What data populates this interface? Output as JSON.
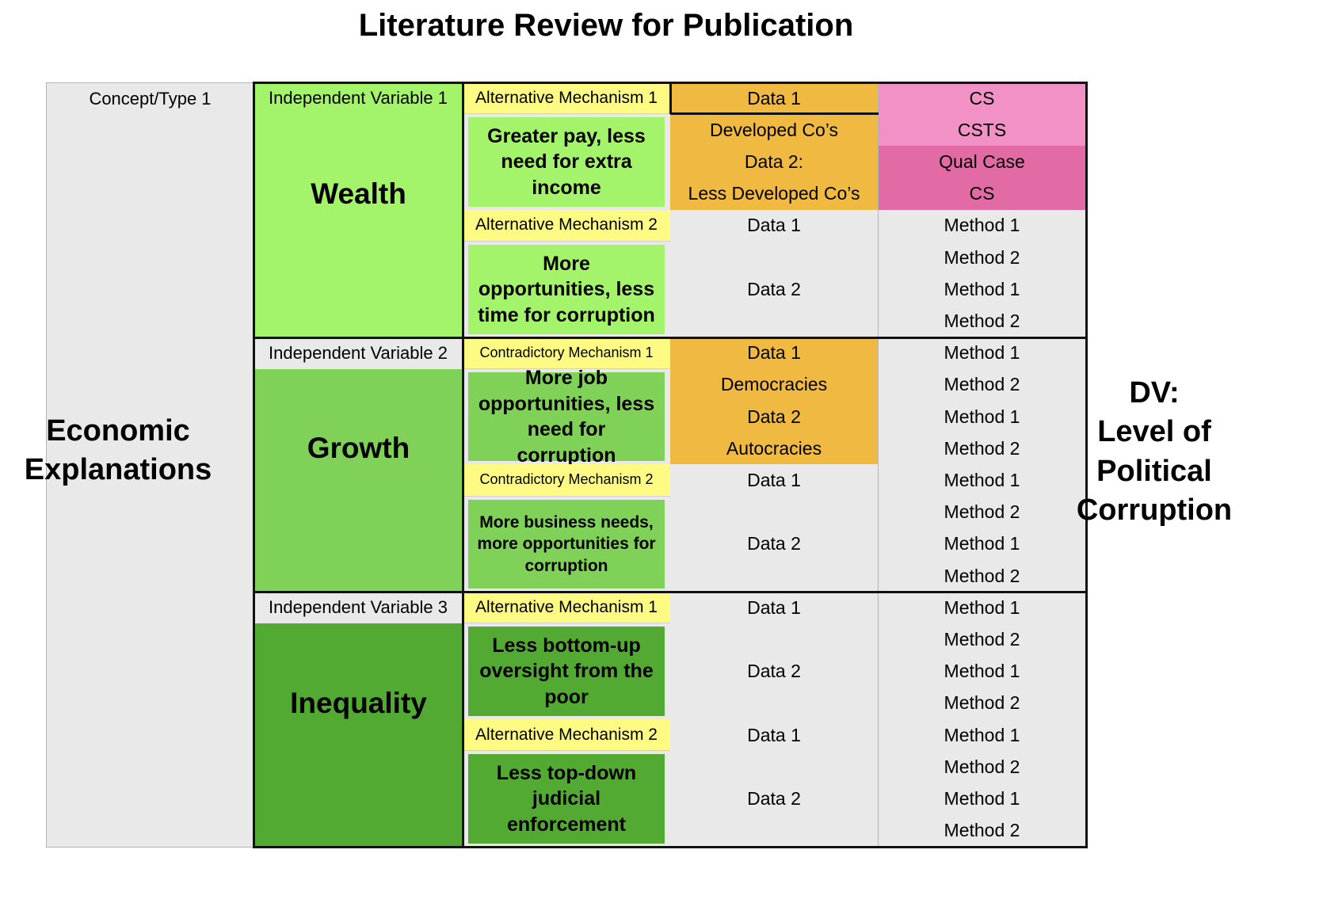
{
  "title": "Literature Review for Publication",
  "concept_label": "Concept/Type 1",
  "left_label": "Economic Explanations",
  "dv_label": [
    "DV:",
    "Level of",
    "Political",
    "Corruption"
  ],
  "colors": {
    "iv1": "#a3f36b",
    "iv2": "#7fd158",
    "iv3": "#52aa33",
    "mechanism_header": "#fdfb84",
    "data_highlight": "#f0b942",
    "cs_pink": "#f191c6",
    "qual_pink": "#e26aa5",
    "grid": "#e9e9e9"
  },
  "groups": [
    {
      "iv_label": "Independent Variable 1",
      "concept": "Wealth",
      "mechanisms": [
        {
          "header": "Alternative Mechanism 1",
          "text": "Greater pay, less need for extra income"
        },
        {
          "header": "Alternative Mechanism 2",
          "text": "More opportunities, less time for corruption"
        }
      ],
      "data": [
        "Data 1",
        "Developed Co’s",
        "Data 2:",
        "Less Developed Co’s",
        "Data 1",
        "",
        "Data 2",
        ""
      ],
      "methods": [
        "CS",
        "CSTS",
        "Qual Case",
        "CS",
        "Method 1",
        "Method 2",
        "Method 1",
        "Method 2"
      ]
    },
    {
      "iv_label": "Independent Variable 2",
      "concept": "Growth",
      "mechanisms": [
        {
          "header": "Contradictory Mechanism 1",
          "text": "More job opportunities, less need for corruption"
        },
        {
          "header": "Contradictory Mechanism 2",
          "text": "More business needs, more opportunities for corruption"
        }
      ],
      "data": [
        "Data 1",
        "Democracies",
        "Data 2",
        "Autocracies",
        "Data 1",
        "",
        "Data 2",
        ""
      ],
      "methods": [
        "Method 1",
        "Method 2",
        "Method 1",
        "Method 2",
        "Method 1",
        "Method 2",
        "Method 1",
        "Method 2"
      ]
    },
    {
      "iv_label": "Independent Variable 3",
      "concept": "Inequality",
      "mechanisms": [
        {
          "header": "Alternative Mechanism 1",
          "text": "Less bottom-up oversight from the poor"
        },
        {
          "header": "Alternative Mechanism 2",
          "text": "Less top-down judicial enforcement"
        }
      ],
      "data": [
        "Data 1",
        "",
        "Data 2",
        "",
        "Data 1",
        "",
        "Data 2",
        ""
      ],
      "methods": [
        "Method 1",
        "Method 2",
        "Method 1",
        "Method 2",
        "Method 1",
        "Method 2",
        "Method 1",
        "Method 2"
      ]
    }
  ]
}
